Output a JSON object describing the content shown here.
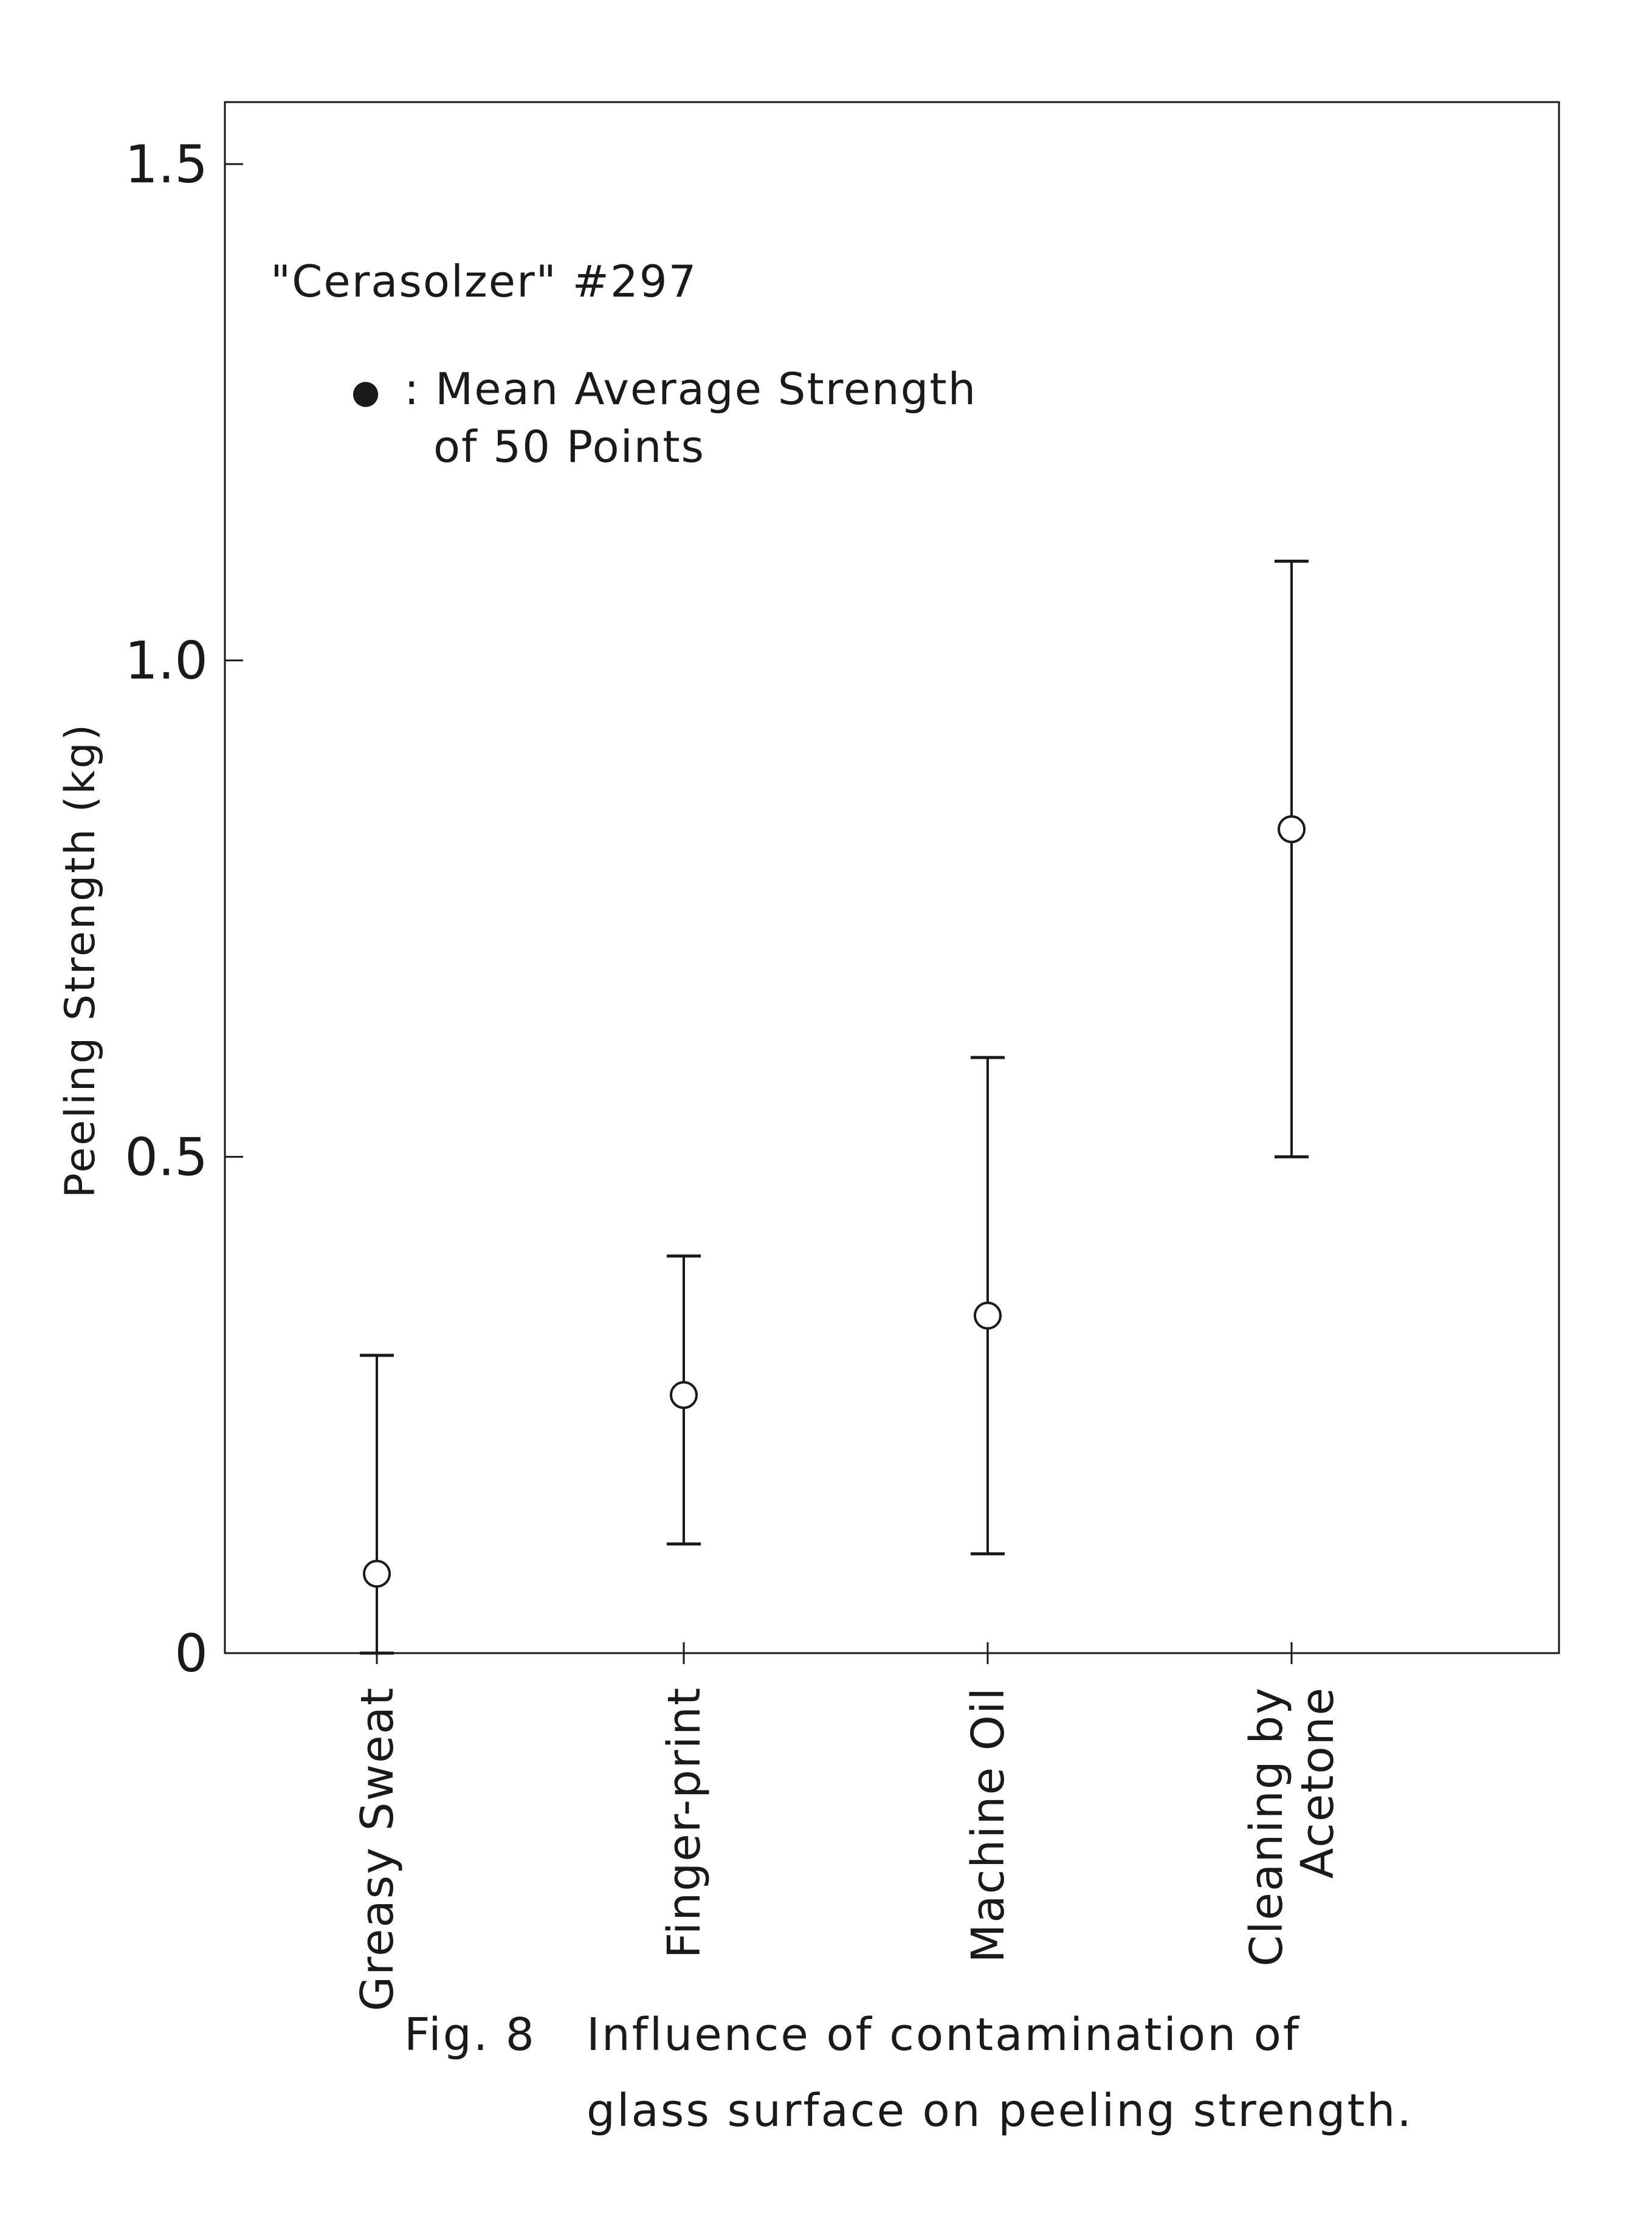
{
  "chart_data": {
    "type": "scatter",
    "title": "\"Cerasolzer\" #297",
    "legend": {
      "marker": "●",
      "text_lines": [
        ": Mean Average Strength",
        "of 50 Points"
      ],
      "placement": "top-left"
    },
    "ylabel": "Peeling Strength (kg)",
    "xlabel": "",
    "ylim": [
      0,
      1.55
    ],
    "yticks": [
      0,
      0.5,
      1.0,
      1.5
    ],
    "ytick_labels": [
      "0",
      "0.5",
      "1.0",
      "1.5"
    ],
    "categories": [
      {
        "label_lines": [
          "Greasy Sweat"
        ]
      },
      {
        "label_lines": [
          "Finger-print"
        ]
      },
      {
        "label_lines": [
          "Machine Oil"
        ]
      },
      {
        "label_lines": [
          "Cleaning by",
          "Acetone"
        ]
      }
    ],
    "series": [
      {
        "mean": [
          0.08,
          0.26,
          0.34,
          0.83
        ],
        "min": [
          0.0,
          0.11,
          0.1,
          0.5
        ],
        "max": [
          0.3,
          0.4,
          0.6,
          1.1
        ]
      }
    ],
    "grid": false,
    "colors": {
      "ink": "#1a1a1a",
      "paper": "#ffffff"
    }
  },
  "caption": {
    "label": "Fig. 8",
    "line1": "Influence of contamination of",
    "line2": "glass surface on peeling strength."
  }
}
